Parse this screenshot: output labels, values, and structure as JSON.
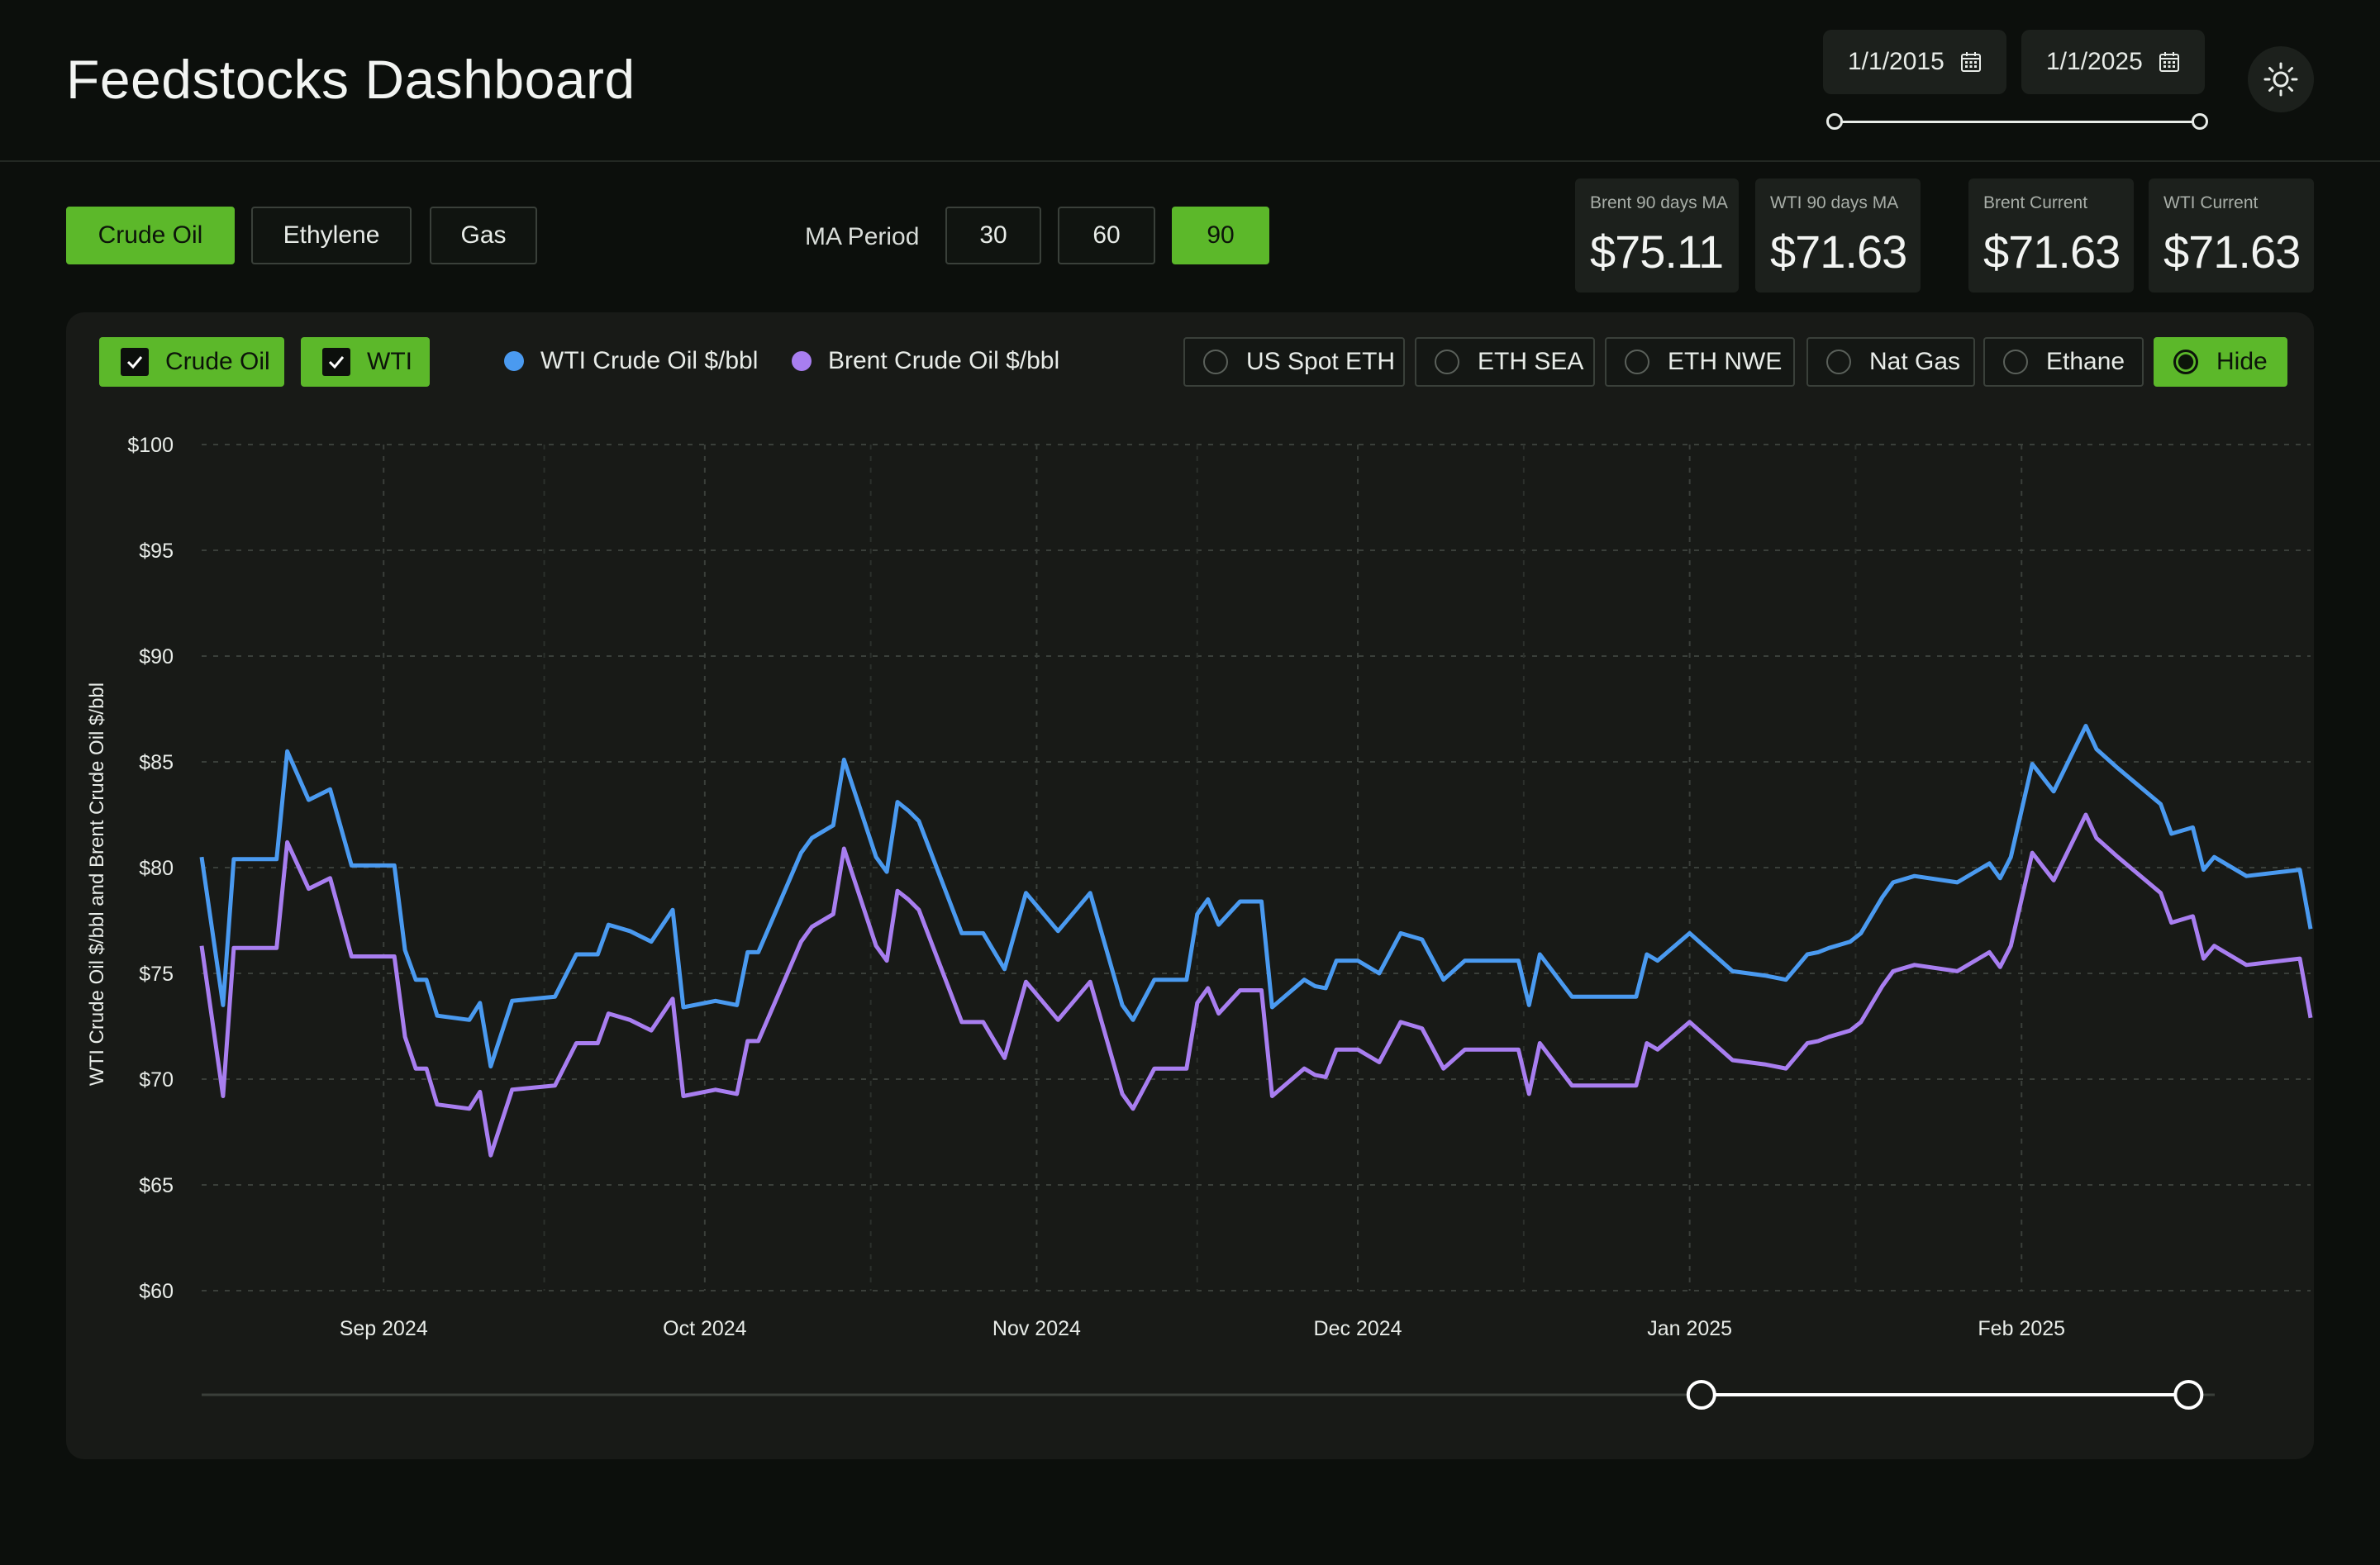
{
  "header": {
    "title": "Feedstocks Dashboard",
    "start_date": "1/1/2015",
    "end_date": "1/1/2025"
  },
  "feedstock_tabs": [
    {
      "label": "Crude Oil",
      "active": true
    },
    {
      "label": "Ethylene",
      "active": false
    },
    {
      "label": "Gas",
      "active": false
    }
  ],
  "ma_period": {
    "label": "MA Period",
    "options": [
      {
        "label": "30",
        "active": false
      },
      {
        "label": "60",
        "active": false
      },
      {
        "label": "90",
        "active": true
      }
    ]
  },
  "stats": [
    {
      "label": "Brent 90 days MA",
      "value": "$75.11"
    },
    {
      "label": "WTI 90 days MA",
      "value": "$71.63"
    },
    {
      "label": "Brent Current",
      "value": "$71.63"
    },
    {
      "label": "WTI Current",
      "value": "$71.63"
    }
  ],
  "filters": {
    "checkboxes": [
      {
        "label": "Crude Oil",
        "checked": true
      },
      {
        "label": "WTI",
        "checked": true
      }
    ],
    "radios": [
      {
        "label": "US Spot ETH",
        "selected": false
      },
      {
        "label": "ETH SEA",
        "selected": false
      },
      {
        "label": "ETH NWE",
        "selected": false
      },
      {
        "label": "Nat Gas",
        "selected": false
      },
      {
        "label": "Ethane",
        "selected": false
      },
      {
        "label": "Hide",
        "selected": true
      }
    ]
  },
  "colors": {
    "accent": "#5cb82a",
    "wti": "#4a9af0",
    "brent": "#a87ef0"
  },
  "chart_data": {
    "type": "line",
    "ylabel": "WTI Crude Oil  $/bbl and  Brent Crude Oil $/bbl",
    "ylim": [
      60,
      100
    ],
    "y_ticks": [
      {
        "value": 100,
        "label": "$100"
      },
      {
        "value": 95,
        "label": "$95"
      },
      {
        "value": 90,
        "label": "$90"
      },
      {
        "value": 85,
        "label": "$85"
      },
      {
        "value": 80,
        "label": "$80"
      },
      {
        "value": 75,
        "label": "$75"
      },
      {
        "value": 70,
        "label": "$70"
      },
      {
        "value": 65,
        "label": "$65"
      },
      {
        "value": 60,
        "label": "$60"
      }
    ],
    "xlim": [
      "2024-08-15",
      "2025-02-28"
    ],
    "x_ticks": [
      {
        "date": "2024-09-01",
        "label": "Sep 2024"
      },
      {
        "date": "2024-10-01",
        "label": "Oct 2024"
      },
      {
        "date": "2024-11-01",
        "label": "Nov 2024"
      },
      {
        "date": "2024-12-01",
        "label": "Dec 2024"
      },
      {
        "date": "2025-01-01",
        "label": "Jan 2025"
      },
      {
        "date": "2025-02-01",
        "label": "Feb 2025"
      }
    ],
    "grid": true,
    "legend": "top-left",
    "x": [
      "2024-08-15",
      "2024-08-17",
      "2024-08-18",
      "2024-08-22",
      "2024-08-23",
      "2024-08-25",
      "2024-08-27",
      "2024-08-29",
      "2024-09-02",
      "2024-09-03",
      "2024-09-04",
      "2024-09-05",
      "2024-09-06",
      "2024-09-09",
      "2024-09-10",
      "2024-09-11",
      "2024-09-13",
      "2024-09-17",
      "2024-09-19",
      "2024-09-21",
      "2024-09-22",
      "2024-09-24",
      "2024-09-26",
      "2024-09-28",
      "2024-09-29",
      "2024-10-02",
      "2024-10-04",
      "2024-10-05",
      "2024-10-06",
      "2024-10-10",
      "2024-10-11",
      "2024-10-13",
      "2024-10-14",
      "2024-10-17",
      "2024-10-18",
      "2024-10-19",
      "2024-10-20",
      "2024-10-21",
      "2024-10-25",
      "2024-10-26",
      "2024-10-27",
      "2024-10-29",
      "2024-10-31",
      "2024-11-03",
      "2024-11-06",
      "2024-11-09",
      "2024-11-10",
      "2024-11-12",
      "2024-11-14",
      "2024-11-15",
      "2024-11-16",
      "2024-11-17",
      "2024-11-18",
      "2024-11-20",
      "2024-11-22",
      "2024-11-23",
      "2024-11-26",
      "2024-11-27",
      "2024-11-28",
      "2024-11-29",
      "2024-12-01",
      "2024-12-03",
      "2024-12-05",
      "2024-12-07",
      "2024-12-09",
      "2024-12-11",
      "2024-12-12",
      "2024-12-13",
      "2024-12-16",
      "2024-12-17",
      "2024-12-18",
      "2024-12-21",
      "2024-12-22",
      "2024-12-24",
      "2024-12-27",
      "2024-12-28",
      "2024-12-29",
      "2025-01-01",
      "2025-01-05",
      "2025-01-08",
      "2025-01-10",
      "2025-01-12",
      "2025-01-13",
      "2025-01-14",
      "2025-01-16",
      "2025-01-17",
      "2025-01-19",
      "2025-01-20",
      "2025-01-22",
      "2025-01-26",
      "2025-01-29",
      "2025-01-30",
      "2025-01-31",
      "2025-02-02",
      "2025-02-04",
      "2025-02-07",
      "2025-02-08",
      "2025-02-10",
      "2025-02-14",
      "2025-02-15",
      "2025-02-17",
      "2025-02-18",
      "2025-02-19",
      "2025-02-22",
      "2025-02-27",
      "2025-02-28"
    ],
    "series": [
      {
        "name": "WTI Crude Oil $/bbl",
        "values": [
          80.5,
          73.5,
          80.4,
          80.4,
          85.5,
          83.2,
          83.7,
          80.1,
          80.1,
          76.1,
          74.7,
          74.7,
          73.0,
          72.8,
          73.6,
          70.6,
          73.7,
          73.9,
          75.9,
          75.9,
          77.3,
          77.0,
          76.5,
          78.0,
          73.4,
          73.7,
          73.5,
          76.0,
          76.0,
          80.7,
          81.4,
          82.0,
          85.1,
          80.5,
          79.8,
          83.1,
          82.7,
          82.2,
          76.9,
          76.9,
          76.9,
          75.2,
          78.8,
          77.0,
          78.8,
          73.5,
          72.8,
          74.7,
          74.7,
          74.7,
          77.8,
          78.5,
          77.3,
          78.4,
          78.4,
          73.4,
          74.7,
          74.4,
          74.3,
          75.6,
          75.6,
          75.0,
          76.9,
          76.6,
          74.7,
          75.6,
          75.6,
          75.6,
          75.6,
          73.5,
          75.9,
          73.9,
          73.9,
          73.9,
          73.9,
          75.9,
          75.6,
          76.9,
          75.1,
          74.9,
          74.7,
          75.9,
          76.0,
          76.2,
          76.5,
          76.9,
          78.6,
          79.3,
          79.6,
          79.3,
          80.2,
          79.5,
          80.5,
          84.9,
          83.6,
          86.7,
          85.6,
          84.7,
          83.0,
          81.6,
          81.9,
          79.9,
          80.5,
          79.6,
          79.9,
          77.1
        ]
      },
      {
        "name": "Brent Crude Oil $/bbl",
        "values": [
          76.3,
          69.2,
          76.2,
          76.2,
          81.2,
          79.0,
          79.5,
          75.8,
          75.8,
          72.0,
          70.5,
          70.5,
          68.8,
          68.6,
          69.4,
          66.4,
          69.5,
          69.7,
          71.7,
          71.7,
          73.1,
          72.8,
          72.3,
          73.8,
          69.2,
          69.5,
          69.3,
          71.8,
          71.8,
          76.5,
          77.2,
          77.8,
          80.9,
          76.3,
          75.6,
          78.9,
          78.5,
          78.0,
          72.7,
          72.7,
          72.7,
          71.0,
          74.6,
          72.8,
          74.6,
          69.3,
          68.6,
          70.5,
          70.5,
          70.5,
          73.6,
          74.3,
          73.1,
          74.2,
          74.2,
          69.2,
          70.5,
          70.2,
          70.1,
          71.4,
          71.4,
          70.8,
          72.7,
          72.4,
          70.5,
          71.4,
          71.4,
          71.4,
          71.4,
          69.3,
          71.7,
          69.7,
          69.7,
          69.7,
          69.7,
          71.7,
          71.4,
          72.7,
          70.9,
          70.7,
          70.5,
          71.7,
          71.8,
          72.0,
          72.3,
          72.7,
          74.4,
          75.1,
          75.4,
          75.1,
          76.0,
          75.3,
          76.3,
          80.7,
          79.4,
          82.5,
          81.4,
          80.5,
          78.8,
          77.4,
          77.7,
          75.7,
          76.3,
          75.4,
          75.7,
          72.9
        ]
      }
    ]
  },
  "zoom_range": {
    "start_fraction": 0.745,
    "end_fraction": 0.987
  }
}
